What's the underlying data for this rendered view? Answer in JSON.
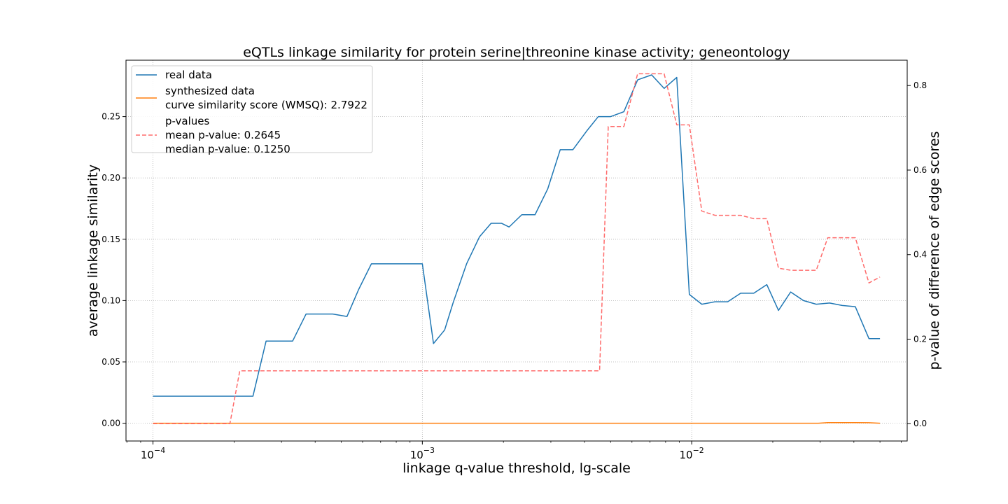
{
  "chart_data": {
    "type": "line",
    "title": "eQTLs linkage similarity for protein serine|threonine kinase activity; geneontology",
    "xlabel": "linkage q-value threshold, lg-scale",
    "ylabel": "average linkage similarity",
    "y2label": "p-value of difference of edge scores",
    "xscale": "log",
    "xlim": [
      7.94e-05,
      0.0631
    ],
    "ylim": [
      -0.0145,
      0.296
    ],
    "y2lim": [
      -0.041,
      0.86
    ],
    "xticks": [
      {
        "value": 0.0001,
        "base": "10",
        "exp": "−4"
      },
      {
        "value": 0.001,
        "base": "10",
        "exp": "−3"
      },
      {
        "value": 0.01,
        "base": "10",
        "exp": "−2"
      }
    ],
    "yticks": [
      0.0,
      0.05,
      0.1,
      0.15,
      0.2,
      0.25
    ],
    "y2ticks": [
      0.0,
      0.2,
      0.4,
      0.6,
      0.8
    ],
    "grid": true,
    "legend": {
      "position": "upper-left",
      "entries": [
        {
          "lines": [
            "real data"
          ],
          "color": "#1f77b4",
          "dash": "solid"
        },
        {
          "lines": [
            "synthesized data",
            "curve similarity score (WMSQ): 2.7922"
          ],
          "color": "#ff7f0e",
          "dash": "solid"
        },
        {
          "lines": [
            "p-values",
            "mean p-value: 0.2645",
            "median p-value: 0.1250"
          ],
          "color": "#ff6b6b",
          "dash": "dashed"
        }
      ]
    },
    "series": [
      {
        "name": "real data",
        "axis": "left",
        "color": "#1f77b4",
        "dash": "solid",
        "x": [
          0.0001,
          0.00012,
          0.000145,
          0.000175,
          0.0002,
          0.000235,
          0.000263,
          0.000295,
          0.00033,
          0.00037,
          0.000417,
          0.000465,
          0.000525,
          0.00058,
          0.000647,
          0.000725,
          0.00081,
          0.0009,
          0.001,
          0.0011,
          0.00121,
          0.0013,
          0.00146,
          0.00163,
          0.0018,
          0.00197,
          0.0021,
          0.00234,
          0.00262,
          0.00292,
          0.00325,
          0.00362,
          0.0041,
          0.0045,
          0.005,
          0.0056,
          0.0063,
          0.0071,
          0.0079,
          0.0088,
          0.0098,
          0.0109,
          0.0122,
          0.0136,
          0.0152,
          0.017,
          0.019,
          0.021,
          0.0233,
          0.026,
          0.029,
          0.0325,
          0.0362,
          0.0405,
          0.0455,
          0.05
        ],
        "y": [
          0.022,
          0.022,
          0.022,
          0.022,
          0.022,
          0.022,
          0.067,
          0.067,
          0.067,
          0.089,
          0.089,
          0.089,
          0.087,
          0.109,
          0.13,
          0.13,
          0.13,
          0.13,
          0.13,
          0.065,
          0.076,
          0.098,
          0.13,
          0.152,
          0.163,
          0.163,
          0.16,
          0.17,
          0.17,
          0.191,
          0.223,
          0.223,
          0.239,
          0.25,
          0.25,
          0.254,
          0.28,
          0.284,
          0.273,
          0.282,
          0.105,
          0.097,
          0.099,
          0.099,
          0.106,
          0.106,
          0.113,
          0.092,
          0.107,
          0.1,
          0.097,
          0.098,
          0.096,
          0.095,
          0.069,
          0.069
        ]
      },
      {
        "name": "synthesized data",
        "axis": "left",
        "color": "#ff7f0e",
        "dash": "solid",
        "x": [
          0.0001,
          0.001,
          0.01,
          0.0295,
          0.032,
          0.0362,
          0.0405,
          0.0455,
          0.05
        ],
        "y": [
          0.0,
          0.0,
          0.0,
          0.0,
          0.0005,
          0.0005,
          0.0005,
          0.0004,
          0.0
        ]
      },
      {
        "name": "p-values",
        "axis": "right",
        "color": "#ff6b6b",
        "dash": "dashed",
        "x": [
          0.0001,
          0.000193,
          0.00021,
          0.00045,
          0.00455,
          0.0049,
          0.0056,
          0.0063,
          0.0071,
          0.0079,
          0.0088,
          0.0098,
          0.0109,
          0.0122,
          0.0136,
          0.0152,
          0.017,
          0.019,
          0.021,
          0.0233,
          0.026,
          0.029,
          0.032,
          0.0362,
          0.0405,
          0.0455,
          0.05
        ],
        "y": [
          0.0,
          0.0,
          0.125,
          0.125,
          0.125,
          0.703,
          0.703,
          0.828,
          0.828,
          0.828,
          0.707,
          0.707,
          0.503,
          0.493,
          0.493,
          0.493,
          0.485,
          0.485,
          0.368,
          0.363,
          0.363,
          0.363,
          0.44,
          0.44,
          0.44,
          0.333,
          0.347
        ]
      }
    ]
  }
}
